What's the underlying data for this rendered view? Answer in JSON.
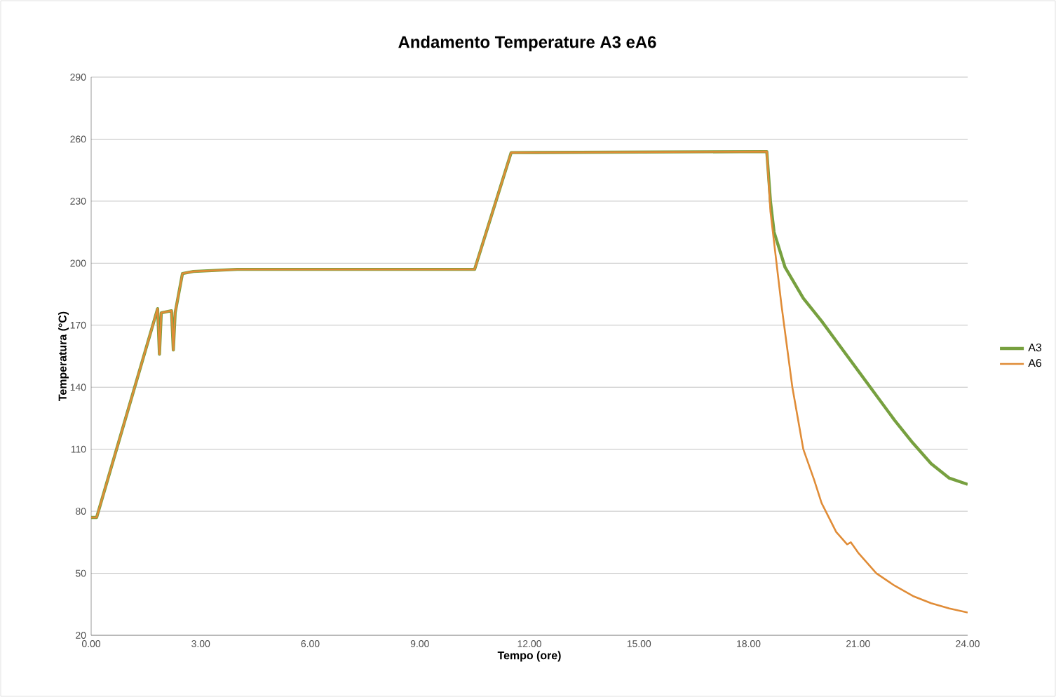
{
  "chart_data": {
    "type": "line",
    "title": "Andamento Temperature A3 eA6",
    "xlabel": "Tempo (ore)",
    "ylabel": "Temperatura (°C)",
    "xlim": [
      0,
      24
    ],
    "ylim": [
      20,
      290
    ],
    "xticks": [
      {
        "value": 0,
        "label": "0.00"
      },
      {
        "value": 3,
        "label": "3.00"
      },
      {
        "value": 6,
        "label": "6.00"
      },
      {
        "value": 9,
        "label": "9.00"
      },
      {
        "value": 12,
        "label": "12.00"
      },
      {
        "value": 15,
        "label": "15.00"
      },
      {
        "value": 18,
        "label": "18.00"
      },
      {
        "value": 21,
        "label": "21.00"
      },
      {
        "value": 24,
        "label": "24.00"
      }
    ],
    "yticks": [
      20,
      50,
      80,
      110,
      140,
      170,
      200,
      230,
      260,
      290
    ],
    "grid": "y",
    "legend": "right",
    "marker": "none",
    "line_style": "solid",
    "series": [
      {
        "name": "A3",
        "color": "#77a03f",
        "x": [
          0,
          0.15,
          1.82,
          1.87,
          1.92,
          2.2,
          2.25,
          2.3,
          2.5,
          2.8,
          4,
          10.5,
          11.5,
          18.5,
          18.6,
          18.7,
          19,
          19.5,
          20,
          20.5,
          21,
          21.5,
          22,
          22.5,
          23,
          23.5,
          24
        ],
        "values": [
          77,
          77,
          178,
          156,
          176,
          177,
          158,
          176,
          195,
          196,
          197,
          197,
          253.5,
          254,
          230,
          215,
          198,
          183,
          172,
          160,
          148,
          136,
          124,
          113,
          103,
          96,
          93
        ]
      },
      {
        "name": "A6",
        "color": "#e08c37",
        "x": [
          0,
          0.15,
          1.82,
          1.87,
          1.92,
          2.2,
          2.25,
          2.3,
          2.5,
          2.8,
          4,
          10.5,
          11.5,
          18.5,
          18.6,
          18.9,
          19.2,
          19.5,
          19.8,
          20,
          20.4,
          20.7,
          20.8,
          21,
          21.5,
          22,
          22.5,
          23,
          23.5,
          24
        ],
        "values": [
          77,
          77,
          178,
          156,
          176,
          177,
          158,
          176,
          195,
          196,
          197,
          197,
          253.5,
          254,
          225,
          180,
          140,
          110,
          95,
          84,
          70,
          64,
          65,
          60,
          50,
          44,
          39,
          35.5,
          33,
          31
        ]
      }
    ]
  }
}
